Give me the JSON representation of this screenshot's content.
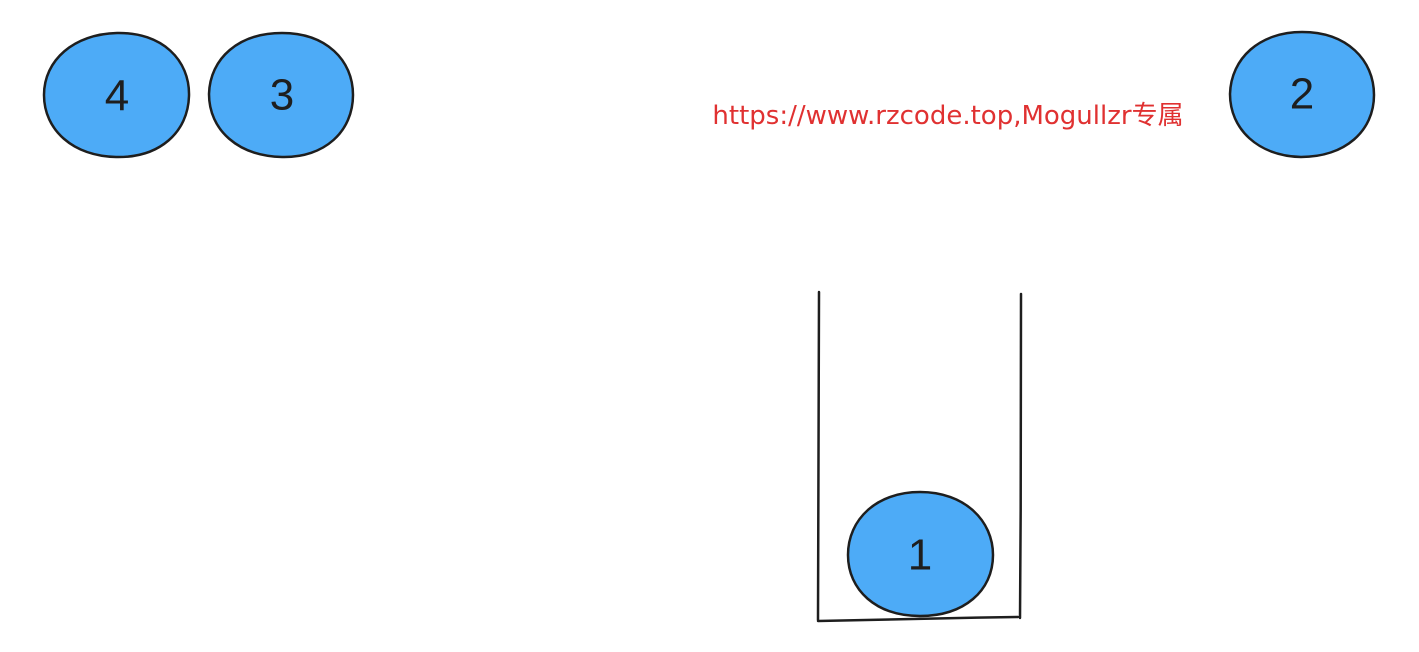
{
  "watermark": {
    "text": "https://www.rzcode.top,Mogullzr专属",
    "color": "#e03131"
  },
  "colors": {
    "node_fill": "#4dabf7",
    "stroke": "#1e1e1e",
    "label": "#1e1e1e"
  },
  "nodes": [
    {
      "id": "node-4",
      "label": "4"
    },
    {
      "id": "node-3",
      "label": "3"
    },
    {
      "id": "node-2",
      "label": "2"
    },
    {
      "id": "node-1",
      "label": "1"
    }
  ]
}
